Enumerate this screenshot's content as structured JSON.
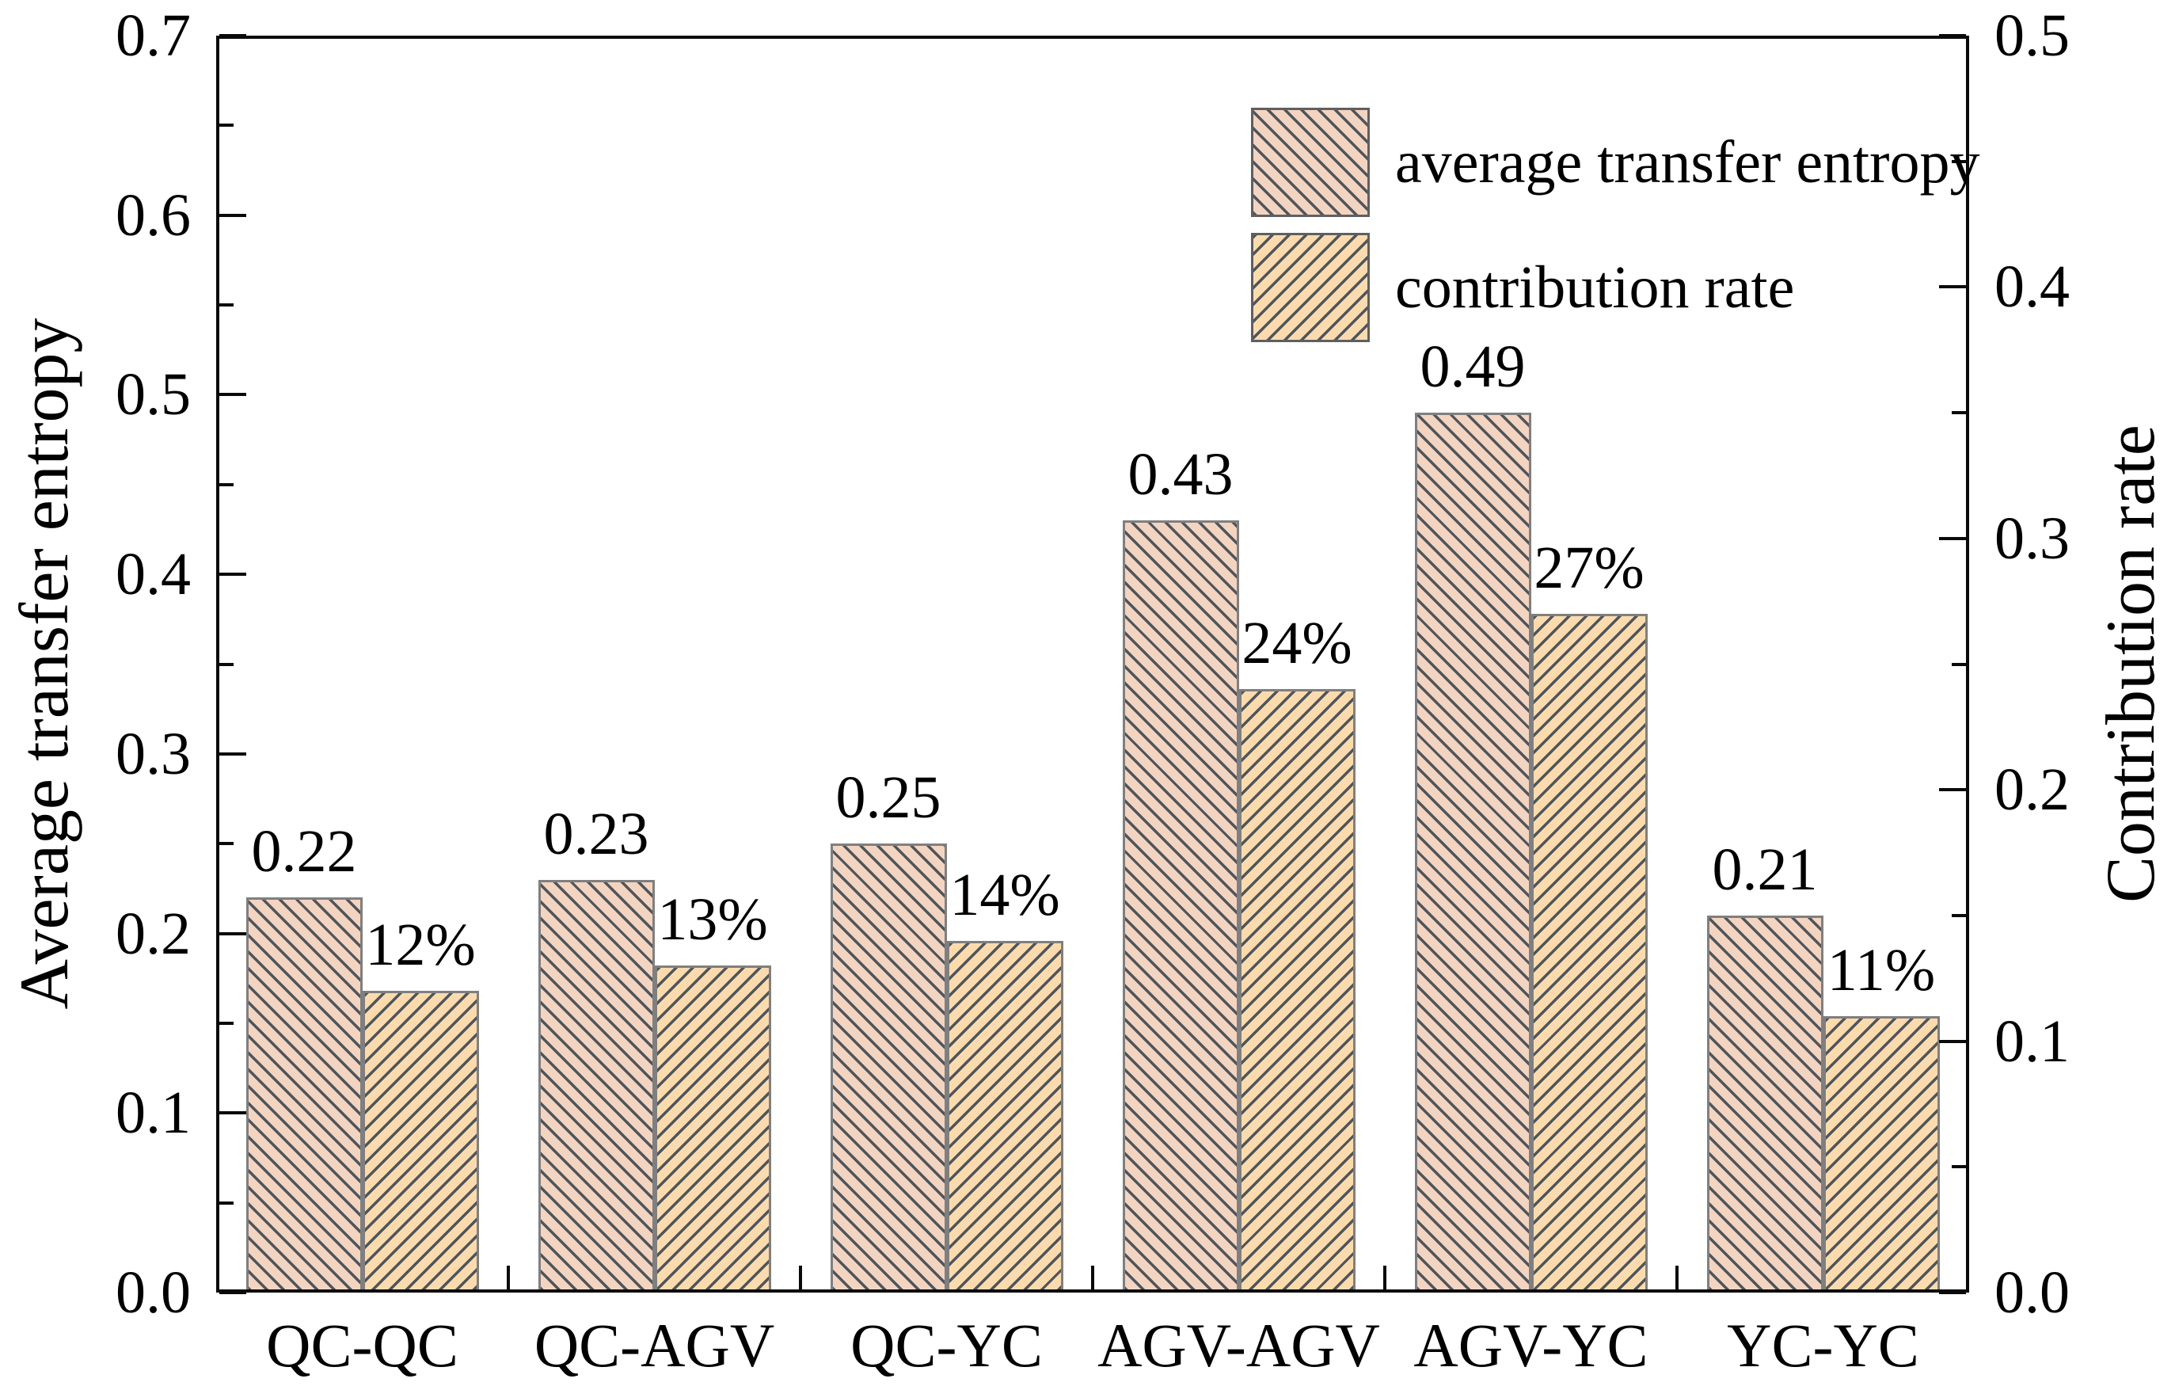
{
  "chart_data": {
    "type": "bar",
    "categories": [
      "QC-QC",
      "QC-AGV",
      "QC-YC",
      "AGV-AGV",
      "AGV-YC",
      "YC-YC"
    ],
    "series": [
      {
        "name": "average transfer entropy",
        "axis": "left",
        "values": [
          0.22,
          0.23,
          0.25,
          0.43,
          0.49,
          0.21
        ],
        "data_labels": [
          "0.22",
          "0.23",
          "0.25",
          "0.43",
          "0.49",
          "0.21"
        ],
        "fill_color": "#f3d4c1",
        "hatch": "\\"
      },
      {
        "name": "contribution rate",
        "axis": "right",
        "values": [
          0.12,
          0.13,
          0.14,
          0.24,
          0.27,
          0.11
        ],
        "data_labels": [
          "12%",
          "13%",
          "14%",
          "24%",
          "27%",
          "11%"
        ],
        "fill_color": "#fbdbae",
        "hatch": "/"
      }
    ],
    "left_axis": {
      "label": "Average transfer entropy",
      "min": 0.0,
      "max": 0.7,
      "major_step": 0.1,
      "minor_step": 0.05,
      "tick_labels": [
        "0.0",
        "0.1",
        "0.2",
        "0.3",
        "0.4",
        "0.5",
        "0.6",
        "0.7"
      ]
    },
    "right_axis": {
      "label": "Contribution rate",
      "min": 0.0,
      "max": 0.5,
      "major_step": 0.1,
      "minor_step": 0.05,
      "tick_labels": [
        "0.0",
        "0.1",
        "0.2",
        "0.3",
        "0.4",
        "0.5"
      ]
    },
    "legend": {
      "position": "upper-center-right",
      "entries": [
        {
          "label": "average transfer entropy",
          "hatch": "\\",
          "fill_color": "#f3d4c1"
        },
        {
          "label": "contribution rate",
          "hatch": "/",
          "fill_color": "#fbdbae"
        }
      ]
    },
    "grid": false,
    "hatch_line_color": "#4f555b",
    "bar_edge_color": "#7f7f7f",
    "frame_color": "#0a0a0a",
    "text_color": "#000000"
  }
}
